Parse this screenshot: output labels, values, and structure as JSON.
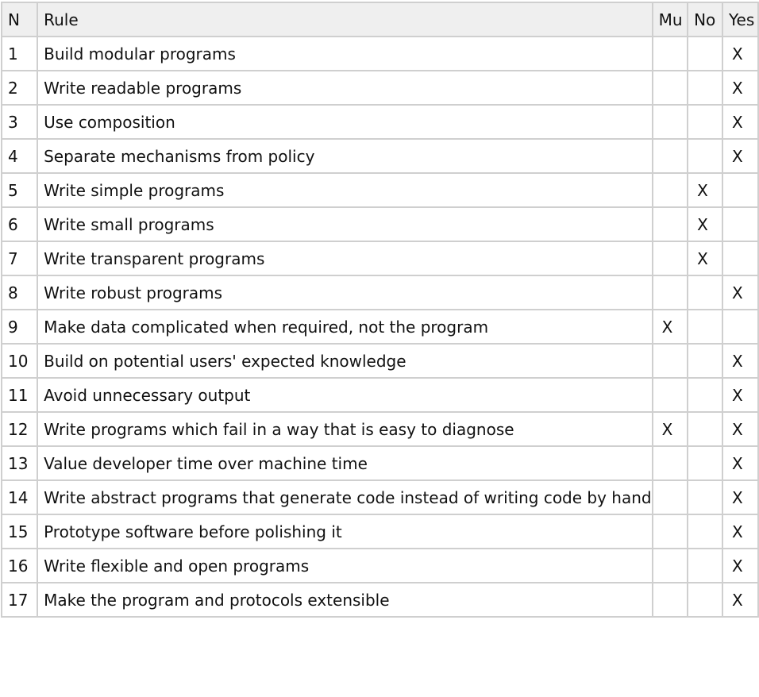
{
  "table": {
    "headers": {
      "n": "N",
      "rule": "Rule",
      "mu": "Mu",
      "no": "No",
      "yes": "Yes"
    },
    "rows": [
      {
        "n": "1",
        "rule": "Build modular programs",
        "mu": "",
        "no": "",
        "yes": "X"
      },
      {
        "n": "2",
        "rule": "Write readable programs",
        "mu": "",
        "no": "",
        "yes": "X"
      },
      {
        "n": "3",
        "rule": "Use composition",
        "mu": "",
        "no": "",
        "yes": "X"
      },
      {
        "n": "4",
        "rule": "Separate mechanisms from policy",
        "mu": "",
        "no": "",
        "yes": "X"
      },
      {
        "n": "5",
        "rule": "Write simple programs",
        "mu": "",
        "no": "X",
        "yes": ""
      },
      {
        "n": "6",
        "rule": "Write small programs",
        "mu": "",
        "no": "X",
        "yes": ""
      },
      {
        "n": "7",
        "rule": "Write transparent programs",
        "mu": "",
        "no": "X",
        "yes": ""
      },
      {
        "n": "8",
        "rule": "Write robust programs",
        "mu": "",
        "no": "",
        "yes": "X"
      },
      {
        "n": "9",
        "rule": "Make data complicated when required, not the program",
        "mu": "X",
        "no": "",
        "yes": ""
      },
      {
        "n": "10",
        "rule": "Build on potential users' expected knowledge",
        "mu": "",
        "no": "",
        "yes": "X"
      },
      {
        "n": "11",
        "rule": "Avoid unnecessary output",
        "mu": "",
        "no": "",
        "yes": "X"
      },
      {
        "n": "12",
        "rule": "Write programs which fail in a way that is easy to diagnose",
        "mu": "X",
        "no": "",
        "yes": "X"
      },
      {
        "n": "13",
        "rule": "Value developer time over machine time",
        "mu": "",
        "no": "",
        "yes": "X"
      },
      {
        "n": "14",
        "rule": "Write abstract programs that generate code instead of writing code by hand",
        "mu": "",
        "no": "",
        "yes": "X"
      },
      {
        "n": "15",
        "rule": "Prototype software before polishing it",
        "mu": "",
        "no": "",
        "yes": "X"
      },
      {
        "n": "16",
        "rule": "Write flexible and open programs",
        "mu": "",
        "no": "",
        "yes": "X"
      },
      {
        "n": "17",
        "rule": "Make the program and protocols extensible",
        "mu": "",
        "no": "",
        "yes": "X"
      }
    ]
  }
}
